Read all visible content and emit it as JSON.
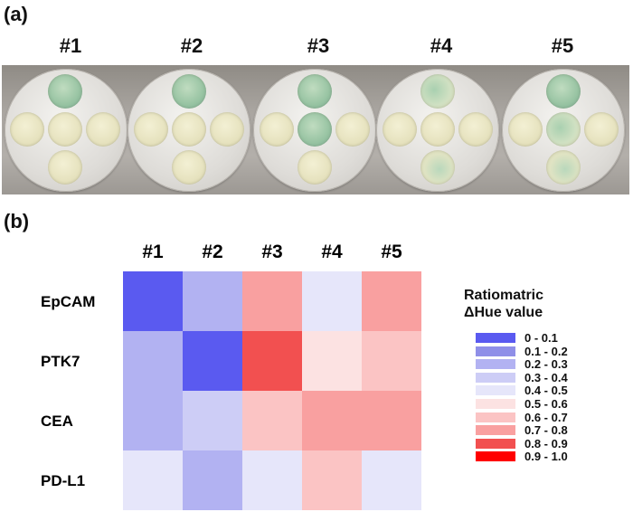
{
  "panels": {
    "a_label": "(a)",
    "b_label": "(b)"
  },
  "photo": {
    "labels": [
      "#1",
      "#2",
      "#3",
      "#4",
      "#5"
    ]
  },
  "chart_data": {
    "type": "heatmap",
    "title": "",
    "columns": [
      "#1",
      "#2",
      "#3",
      "#4",
      "#5"
    ],
    "rows": [
      "EpCAM",
      "PTK7",
      "CEA",
      "PD-L1"
    ],
    "values": [
      [
        0.05,
        0.25,
        0.75,
        0.45,
        0.75
      ],
      [
        0.25,
        0.05,
        0.85,
        0.55,
        0.65
      ],
      [
        0.25,
        0.35,
        0.65,
        0.75,
        0.75
      ],
      [
        0.45,
        0.25,
        0.45,
        0.65,
        0.45
      ]
    ],
    "legend": {
      "title_line1": "Ratiomatric",
      "title_line2": "ΔHue value",
      "bins": [
        {
          "label": "0 - 0.1",
          "color": "#5a5af0"
        },
        {
          "label": "0.1 - 0.2",
          "color": "#8f8fe8"
        },
        {
          "label": "0.2 - 0.3",
          "color": "#b2b2f2"
        },
        {
          "label": "0.3 - 0.4",
          "color": "#cdcdf6"
        },
        {
          "label": "0.4 - 0.5",
          "color": "#e6e6fa"
        },
        {
          "label": "0.5 - 0.6",
          "color": "#fce2e2"
        },
        {
          "label": "0.6 - 0.7",
          "color": "#fbc4c4"
        },
        {
          "label": "0.7 - 0.8",
          "color": "#f9a0a0"
        },
        {
          "label": "0.8 - 0.9",
          "color": "#f25050"
        },
        {
          "label": "0.9 - 1.0",
          "color": "#ff0000"
        }
      ]
    }
  }
}
